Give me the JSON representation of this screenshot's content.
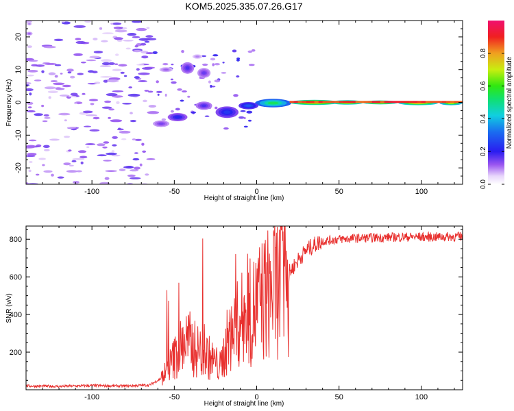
{
  "title": "KOM5.2025.335.07.26.G17",
  "chart_data": [
    {
      "type": "heatmap",
      "xlabel": "Height of straight line (km)",
      "ylabel": "Frequency (Hz)",
      "xlim": [
        -140,
        125
      ],
      "ylim": [
        -25,
        25
      ],
      "xticks": [
        -100,
        -50,
        0,
        50,
        100
      ],
      "yticks": [
        -20,
        -10,
        0,
        10,
        20
      ],
      "colorbar": {
        "label": "Normalized spectral amplitude",
        "range": [
          0.0,
          1.0
        ],
        "ticks": [
          0.0,
          0.2,
          0.4,
          0.6,
          0.8
        ],
        "tick_labels": [
          "0.0",
          "0.2",
          "0.4",
          "0.6",
          "0.8"
        ]
      },
      "blobs": [
        {
          "x": 10,
          "y": -0.2,
          "w": 22,
          "h": 2.6,
          "v": 0.55
        },
        {
          "x": 35,
          "y": 0.0,
          "w": 30,
          "h": 1.6,
          "v": 0.85
        },
        {
          "x": 55,
          "y": 0.0,
          "w": 20,
          "h": 1.4,
          "v": 0.8
        },
        {
          "x": 75,
          "y": 0.0,
          "w": 22,
          "h": 1.2,
          "v": 0.82
        },
        {
          "x": 98,
          "y": -0.2,
          "w": 24,
          "h": 1.3,
          "v": 0.78
        },
        {
          "x": 118,
          "y": -0.2,
          "w": 14,
          "h": 1.3,
          "v": 0.72
        },
        {
          "x": -5,
          "y": -1.0,
          "w": 12,
          "h": 2.2,
          "v": 0.3
        },
        {
          "x": -18,
          "y": -3.0,
          "w": 14,
          "h": 3.5,
          "v": 0.25
        },
        {
          "x": -32,
          "y": -1.0,
          "w": 10,
          "h": 2.5,
          "v": 0.18
        },
        {
          "x": -48,
          "y": -4.5,
          "w": 12,
          "h": 2.5,
          "v": 0.22
        },
        {
          "x": -58,
          "y": -6.5,
          "w": 10,
          "h": 2.0,
          "v": 0.15
        },
        {
          "x": -42,
          "y": 10.5,
          "w": 8,
          "h": 3.5,
          "v": 0.18
        },
        {
          "x": -32,
          "y": 9.0,
          "w": 8,
          "h": 3.0,
          "v": 0.16
        },
        {
          "x": -55,
          "y": 10.0,
          "w": 8,
          "h": 1.5,
          "v": 0.12
        },
        {
          "x": -36,
          "y": 14.0,
          "w": 6,
          "h": 1.4,
          "v": 0.1
        },
        {
          "x": -138,
          "y": 21.0,
          "w": 4,
          "h": 1.2,
          "v": 0.12
        },
        {
          "x": -138,
          "y": 24.0,
          "w": 3,
          "h": 1.0,
          "v": 0.1
        }
      ]
    },
    {
      "type": "line",
      "xlabel": "Height of straight line (km)",
      "ylabel": "SNR (v/v)",
      "xlim": [
        -140,
        125
      ],
      "ylim": [
        0,
        870
      ],
      "xticks": [
        -100,
        -50,
        0,
        50,
        100
      ],
      "yticks": [
        200,
        400,
        600,
        800
      ],
      "series": [
        {
          "name": "SNR",
          "color": "#e8302e",
          "x": [
            -140,
            -120,
            -100,
            -80,
            -65,
            -58,
            -52,
            -48,
            -45,
            -42,
            -38,
            -34,
            -30,
            -26,
            -22,
            -18,
            -15,
            -12,
            -8,
            -5,
            -2,
            0,
            3,
            6,
            10,
            14,
            18,
            22,
            26,
            30,
            35,
            40,
            45,
            50,
            60,
            70,
            80,
            90,
            100,
            110,
            125
          ],
          "values": [
            20,
            18,
            22,
            20,
            25,
            60,
            140,
            200,
            240,
            260,
            220,
            200,
            180,
            150,
            120,
            250,
            300,
            340,
            380,
            400,
            420,
            450,
            480,
            500,
            540,
            560,
            600,
            650,
            700,
            740,
            770,
            790,
            795,
            800,
            805,
            808,
            810,
            812,
            812,
            812,
            815
          ]
        }
      ]
    }
  ]
}
